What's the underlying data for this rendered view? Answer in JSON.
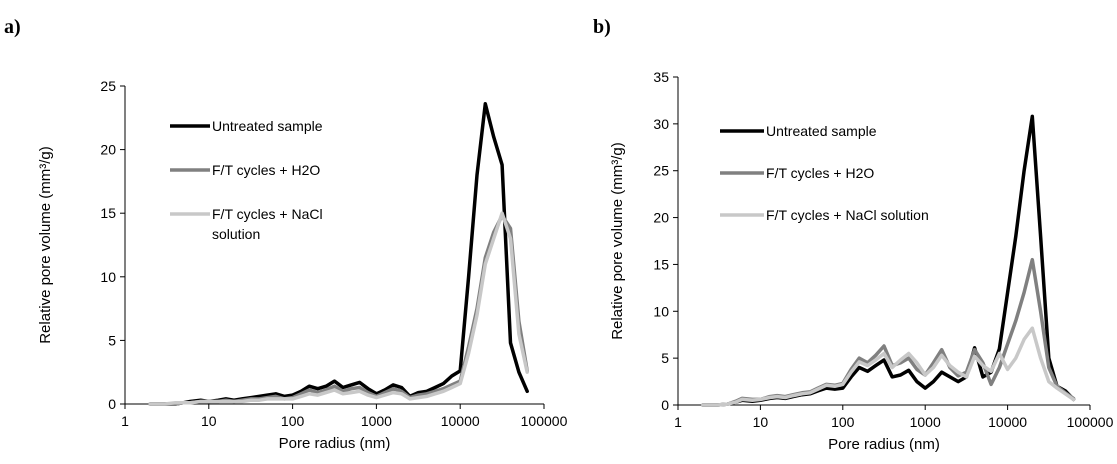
{
  "chart_data": [
    {
      "panel": "a)",
      "type": "line",
      "xlabel": "Pore radius (nm)",
      "ylabel": "Relative pore volume (mm³/g)",
      "xscale": "log",
      "xlim": [
        1,
        100000
      ],
      "ylim": [
        0,
        25
      ],
      "xticks": [
        "1",
        "10",
        "100",
        "1000",
        "10000",
        "100000"
      ],
      "yticks": [
        0,
        5,
        10,
        15,
        20,
        25
      ],
      "legend_position": "top-left",
      "series": [
        {
          "name": "Untreated sample",
          "color": "#000000",
          "x": [
            2,
            3,
            4,
            5,
            6,
            8,
            10,
            13,
            16,
            20,
            25,
            32,
            40,
            50,
            63,
            80,
            100,
            126,
            158,
            200,
            251,
            316,
            398,
            501,
            631,
            794,
            1000,
            1259,
            1585,
            1995,
            2512,
            3162,
            3981,
            5012,
            6310,
            7943,
            10000,
            12589,
            15849,
            19953,
            25119,
            31623,
            39811,
            50119,
            63096
          ],
          "y": [
            0,
            0,
            0,
            0.1,
            0.2,
            0.3,
            0.2,
            0.3,
            0.4,
            0.3,
            0.4,
            0.5,
            0.6,
            0.7,
            0.8,
            0.6,
            0.7,
            1.0,
            1.4,
            1.2,
            1.4,
            1.8,
            1.3,
            1.5,
            1.7,
            1.2,
            0.8,
            1.1,
            1.5,
            1.3,
            0.6,
            0.9,
            1.0,
            1.3,
            1.6,
            2.2,
            2.6,
            10.0,
            18.0,
            23.6,
            21.0,
            18.8,
            4.8,
            2.5,
            1.0
          ]
        },
        {
          "name": "F/T cycles + H2O",
          "color": "#808080",
          "x": [
            2,
            3,
            4,
            5,
            6,
            8,
            10,
            13,
            16,
            20,
            25,
            32,
            40,
            50,
            63,
            80,
            100,
            126,
            158,
            200,
            251,
            316,
            398,
            501,
            631,
            794,
            1000,
            1259,
            1585,
            1995,
            2512,
            3162,
            3981,
            5012,
            6310,
            7943,
            10000,
            12589,
            15849,
            19953,
            25119,
            31623,
            39811,
            50119,
            63096
          ],
          "y": [
            0,
            0,
            0,
            0.1,
            0.1,
            0.2,
            0.2,
            0.2,
            0.3,
            0.2,
            0.3,
            0.4,
            0.4,
            0.5,
            0.6,
            0.4,
            0.5,
            0.8,
            1.1,
            0.9,
            1.1,
            1.4,
            1.0,
            1.2,
            1.3,
            0.9,
            0.6,
            0.9,
            1.2,
            1.0,
            0.5,
            0.7,
            0.8,
            1.0,
            1.2,
            1.5,
            1.8,
            4.5,
            7.5,
            11.5,
            13.5,
            14.8,
            13.8,
            6.5,
            2.6
          ]
        },
        {
          "name": "F/T cycles + NaCl\nsolution",
          "color": "#c8c8c8",
          "x": [
            2,
            3,
            4,
            5,
            6,
            8,
            10,
            13,
            16,
            20,
            25,
            32,
            40,
            50,
            63,
            80,
            100,
            126,
            158,
            200,
            251,
            316,
            398,
            501,
            631,
            794,
            1000,
            1259,
            1585,
            1995,
            2512,
            3162,
            3981,
            5012,
            6310,
            7943,
            10000,
            12589,
            15849,
            19953,
            25119,
            31623,
            39811,
            50119,
            63096
          ],
          "y": [
            0,
            0,
            0.1,
            0.1,
            0.1,
            0.2,
            0.2,
            0.2,
            0.2,
            0.2,
            0.2,
            0.3,
            0.3,
            0.4,
            0.4,
            0.4,
            0.4,
            0.6,
            0.8,
            0.7,
            0.9,
            1.1,
            0.8,
            0.9,
            1.0,
            0.7,
            0.5,
            0.7,
            0.9,
            0.8,
            0.4,
            0.5,
            0.6,
            0.8,
            1.0,
            1.3,
            1.6,
            4.0,
            7.0,
            11.0,
            13.0,
            15.0,
            13.0,
            5.5,
            2.5
          ]
        }
      ]
    },
    {
      "panel": "b)",
      "type": "line",
      "xlabel": "Pore radius (nm)",
      "ylabel": "Relative pore volume (mm³/g)",
      "xscale": "log",
      "xlim": [
        1,
        100000
      ],
      "ylim": [
        0,
        35
      ],
      "xticks": [
        "1",
        "10",
        "100",
        "1000",
        "10000",
        "100000"
      ],
      "yticks": [
        0,
        5,
        10,
        15,
        20,
        25,
        30,
        35
      ],
      "legend_position": "top-left",
      "series": [
        {
          "name": "Untreated sample",
          "color": "#000000",
          "x": [
            2,
            3,
            4,
            5,
            6,
            8,
            10,
            13,
            16,
            20,
            25,
            32,
            40,
            50,
            63,
            80,
            100,
            126,
            158,
            200,
            251,
            316,
            398,
            501,
            631,
            794,
            1000,
            1259,
            1585,
            1995,
            2512,
            3162,
            3981,
            5012,
            6310,
            7943,
            10000,
            12589,
            15849,
            19953,
            25119,
            31623,
            39811,
            50119,
            63096
          ],
          "y": [
            0,
            0,
            0.1,
            0.3,
            0.5,
            0.4,
            0.5,
            0.7,
            0.8,
            0.7,
            0.9,
            1.1,
            1.2,
            1.5,
            1.8,
            1.7,
            1.8,
            3.0,
            4.0,
            3.6,
            4.2,
            4.8,
            3.0,
            3.2,
            3.7,
            2.5,
            1.8,
            2.5,
            3.5,
            3.0,
            2.5,
            3.0,
            6.1,
            3.0,
            3.5,
            6.0,
            12.0,
            18.0,
            25.0,
            30.8,
            18.0,
            5.0,
            2.0,
            1.5,
            0.6
          ]
        },
        {
          "name": "F/T cycles + H2O",
          "color": "#808080",
          "x": [
            2,
            3,
            4,
            5,
            6,
            8,
            10,
            13,
            16,
            20,
            25,
            32,
            40,
            50,
            63,
            80,
            100,
            126,
            158,
            200,
            251,
            316,
            398,
            501,
            631,
            794,
            1000,
            1259,
            1585,
            1995,
            2512,
            3162,
            3981,
            5012,
            6310,
            7943,
            10000,
            12589,
            15849,
            19953,
            25119,
            31623,
            39811,
            50119,
            63096
          ],
          "y": [
            0,
            0,
            0.1,
            0.4,
            0.7,
            0.6,
            0.6,
            0.9,
            1.0,
            0.9,
            1.1,
            1.3,
            1.4,
            1.8,
            2.2,
            2.1,
            2.3,
            3.8,
            5.0,
            4.5,
            5.3,
            6.3,
            4.2,
            4.5,
            5.0,
            3.8,
            3.2,
            4.5,
            5.9,
            4.0,
            3.1,
            3.5,
            5.9,
            4.5,
            2.2,
            4.0,
            6.5,
            9.0,
            12.0,
            15.5,
            10.0,
            4.0,
            2.0,
            1.3,
            0.7
          ]
        },
        {
          "name": "F/T cycles + NaCl solution",
          "color": "#c8c8c8",
          "x": [
            2,
            3,
            4,
            5,
            6,
            8,
            10,
            13,
            16,
            20,
            25,
            32,
            40,
            50,
            63,
            80,
            100,
            126,
            158,
            200,
            251,
            316,
            398,
            501,
            631,
            794,
            1000,
            1259,
            1585,
            1995,
            2512,
            3162,
            3981,
            5012,
            6310,
            7943,
            10000,
            12589,
            15849,
            19953,
            25119,
            31623,
            39811,
            50119,
            63096
          ],
          "y": [
            0,
            0,
            0.1,
            0.3,
            0.6,
            0.5,
            0.6,
            0.8,
            0.9,
            0.8,
            1.0,
            1.2,
            1.3,
            1.7,
            2.1,
            2.0,
            2.2,
            3.5,
            4.6,
            4.2,
            4.8,
            5.5,
            4.0,
            4.8,
            5.5,
            4.5,
            3.2,
            4.0,
            5.3,
            4.2,
            3.5,
            3.0,
            5.2,
            4.2,
            3.6,
            5.5,
            3.8,
            5.0,
            7.0,
            8.2,
            5.0,
            2.5,
            1.8,
            1.2,
            0.6
          ]
        }
      ]
    }
  ]
}
